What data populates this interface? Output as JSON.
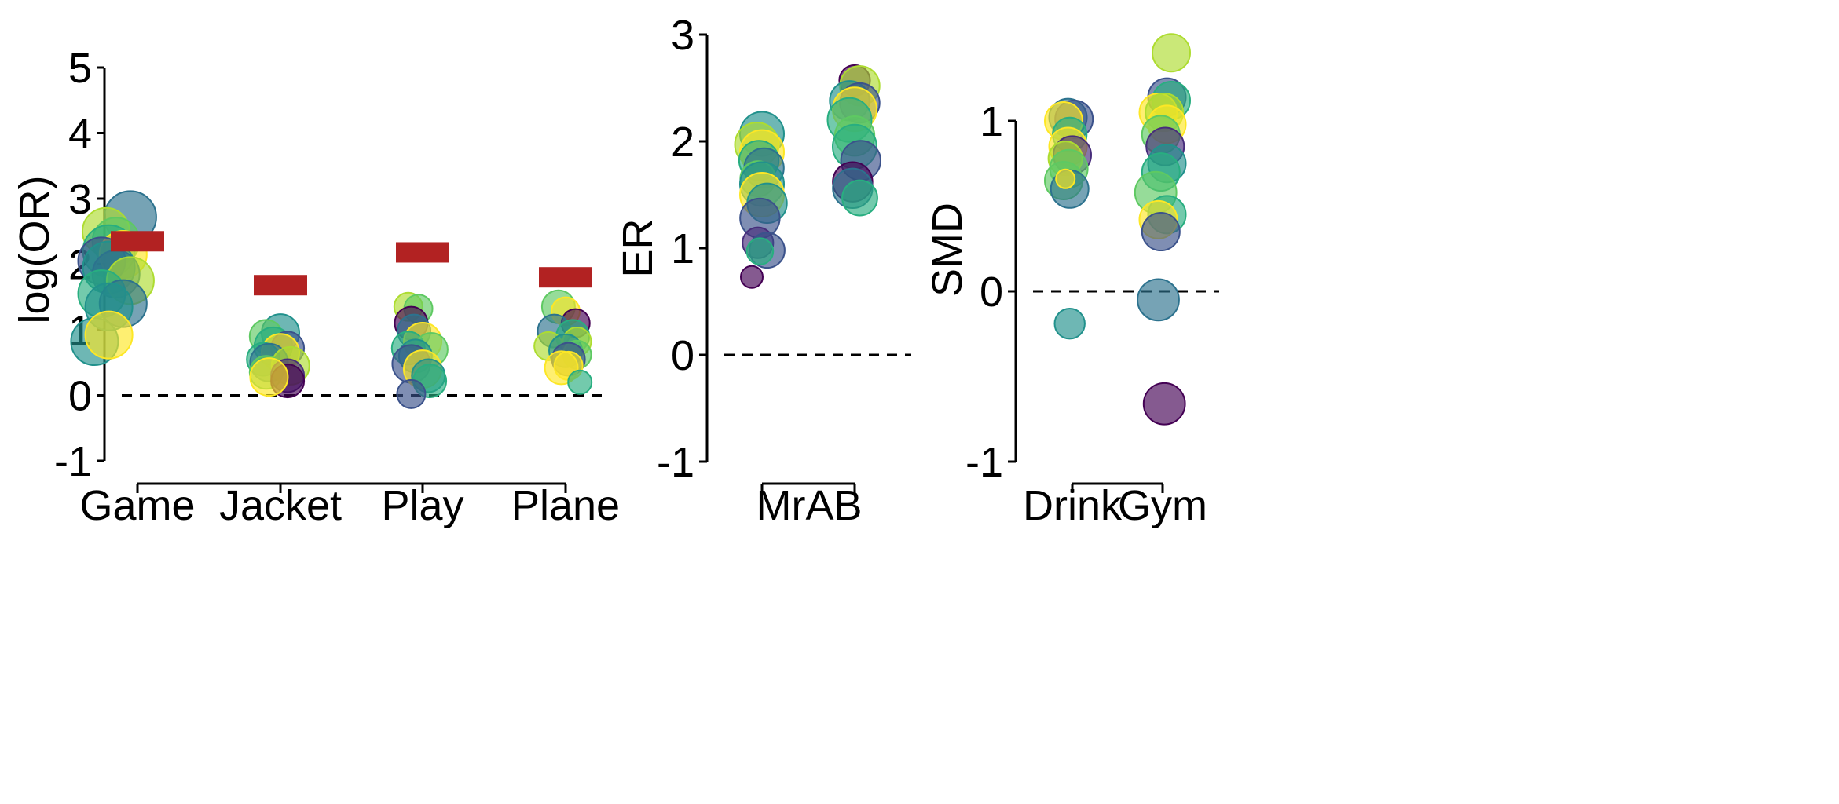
{
  "colors": {
    "reference_bar": "#B22222",
    "zero_line": "#000000",
    "palette": [
      "#440154",
      "#472d7b",
      "#3b528b",
      "#2c728e",
      "#21918c",
      "#28ae80",
      "#5ec962",
      "#addc30",
      "#fde725"
    ]
  },
  "chart_data": [
    {
      "type": "scatter",
      "ylabel": "log(OR)",
      "ylim": [
        -1,
        5
      ],
      "yticks": [
        "5",
        "4",
        "3",
        "2",
        "1",
        "0",
        "-1"
      ],
      "categories": [
        "Game",
        "Jacket",
        "Play",
        "Plane"
      ],
      "zero_line": true,
      "reference_values": [
        2.35,
        1.68,
        2.18,
        1.8
      ],
      "points": [
        {
          "category": "Game",
          "dx": -0.05,
          "y": 2.72,
          "size": 1.1,
          "color": 3
        },
        {
          "category": "Game",
          "dx": -0.22,
          "y": 2.5,
          "size": 1.0,
          "color": 7
        },
        {
          "category": "Game",
          "dx": -0.15,
          "y": 2.35,
          "size": 1.0,
          "color": 6
        },
        {
          "category": "Game",
          "dx": -0.2,
          "y": 2.2,
          "size": 1.1,
          "color": 5
        },
        {
          "category": "Game",
          "dx": -0.1,
          "y": 2.15,
          "size": 1.0,
          "color": 8
        },
        {
          "category": "Game",
          "dx": -0.25,
          "y": 2.05,
          "size": 1.0,
          "color": 2
        },
        {
          "category": "Game",
          "dx": -0.2,
          "y": 1.95,
          "size": 1.1,
          "color": 4
        },
        {
          "category": "Game",
          "dx": -0.15,
          "y": 1.85,
          "size": 1.0,
          "color": 3
        },
        {
          "category": "Game",
          "dx": -0.05,
          "y": 1.75,
          "size": 1.0,
          "color": 7
        },
        {
          "category": "Game",
          "dx": -0.25,
          "y": 1.55,
          "size": 1.0,
          "color": 5
        },
        {
          "category": "Game",
          "dx": -0.1,
          "y": 1.4,
          "size": 1.0,
          "color": 3
        },
        {
          "category": "Game",
          "dx": -0.2,
          "y": 1.35,
          "size": 1.0,
          "color": 4
        },
        {
          "category": "Game",
          "dx": -0.3,
          "y": 0.82,
          "size": 1.0,
          "color": 4
        },
        {
          "category": "Game",
          "dx": -0.2,
          "y": 0.92,
          "size": 1.0,
          "color": 8
        },
        {
          "category": "Jacket",
          "dx": 0.0,
          "y": 0.95,
          "size": 0.8,
          "color": 4
        },
        {
          "category": "Jacket",
          "dx": -0.1,
          "y": 0.9,
          "size": 0.7,
          "color": 6
        },
        {
          "category": "Jacket",
          "dx": -0.05,
          "y": 0.75,
          "size": 0.8,
          "color": 5
        },
        {
          "category": "Jacket",
          "dx": 0.05,
          "y": 0.72,
          "size": 0.7,
          "color": 2
        },
        {
          "category": "Jacket",
          "dx": 0.0,
          "y": 0.65,
          "size": 0.8,
          "color": 8
        },
        {
          "category": "Jacket",
          "dx": -0.12,
          "y": 0.55,
          "size": 0.7,
          "color": 5
        },
        {
          "category": "Jacket",
          "dx": -0.08,
          "y": 0.5,
          "size": 0.8,
          "color": 3
        },
        {
          "category": "Jacket",
          "dx": 0.07,
          "y": 0.45,
          "size": 0.8,
          "color": 7
        },
        {
          "category": "Jacket",
          "dx": -0.1,
          "y": 0.35,
          "size": 0.7,
          "color": 6
        },
        {
          "category": "Jacket",
          "dx": 0.05,
          "y": 0.3,
          "size": 0.7,
          "color": 1
        },
        {
          "category": "Jacket",
          "dx": 0.05,
          "y": 0.22,
          "size": 0.7,
          "color": 0
        },
        {
          "category": "Jacket",
          "dx": -0.08,
          "y": 0.28,
          "size": 0.8,
          "color": 8
        },
        {
          "category": "Play",
          "dx": -0.1,
          "y": 1.35,
          "size": 0.6,
          "color": 7
        },
        {
          "category": "Play",
          "dx": -0.03,
          "y": 1.32,
          "size": 0.6,
          "color": 6
        },
        {
          "category": "Play",
          "dx": -0.08,
          "y": 1.1,
          "size": 0.7,
          "color": 0
        },
        {
          "category": "Play",
          "dx": -0.06,
          "y": 0.98,
          "size": 0.7,
          "color": 3
        },
        {
          "category": "Play",
          "dx": 0.0,
          "y": 0.82,
          "size": 0.8,
          "color": 8
        },
        {
          "category": "Play",
          "dx": -0.1,
          "y": 0.72,
          "size": 0.7,
          "color": 5
        },
        {
          "category": "Play",
          "dx": 0.06,
          "y": 0.7,
          "size": 0.7,
          "color": 6
        },
        {
          "category": "Play",
          "dx": -0.05,
          "y": 0.6,
          "size": 0.7,
          "color": 4
        },
        {
          "category": "Play",
          "dx": -0.08,
          "y": 0.48,
          "size": 0.8,
          "color": 2
        },
        {
          "category": "Play",
          "dx": 0.0,
          "y": 0.4,
          "size": 0.8,
          "color": 8
        },
        {
          "category": "Play",
          "dx": 0.04,
          "y": 0.3,
          "size": 0.7,
          "color": 4
        },
        {
          "category": "Play",
          "dx": 0.05,
          "y": 0.22,
          "size": 0.7,
          "color": 5
        },
        {
          "category": "Play",
          "dx": -0.08,
          "y": 0.02,
          "size": 0.6,
          "color": 2
        },
        {
          "category": "Plane",
          "dx": -0.05,
          "y": 1.35,
          "size": 0.7,
          "color": 6
        },
        {
          "category": "Plane",
          "dx": 0.0,
          "y": 1.28,
          "size": 0.6,
          "color": 8
        },
        {
          "category": "Plane",
          "dx": 0.07,
          "y": 1.1,
          "size": 0.6,
          "color": 0
        },
        {
          "category": "Plane",
          "dx": -0.08,
          "y": 0.98,
          "size": 0.7,
          "color": 3
        },
        {
          "category": "Plane",
          "dx": 0.05,
          "y": 0.9,
          "size": 0.7,
          "color": 5
        },
        {
          "category": "Plane",
          "dx": 0.08,
          "y": 0.82,
          "size": 0.6,
          "color": 7
        },
        {
          "category": "Plane",
          "dx": -0.12,
          "y": 0.75,
          "size": 0.6,
          "color": 7
        },
        {
          "category": "Plane",
          "dx": 0.0,
          "y": 0.68,
          "size": 0.7,
          "color": 4
        },
        {
          "category": "Plane",
          "dx": 0.08,
          "y": 0.62,
          "size": 0.6,
          "color": 6
        },
        {
          "category": "Plane",
          "dx": 0.02,
          "y": 0.55,
          "size": 0.7,
          "color": 2
        },
        {
          "category": "Plane",
          "dx": 0.02,
          "y": 0.45,
          "size": 0.6,
          "color": 8
        },
        {
          "category": "Plane",
          "dx": -0.03,
          "y": 0.42,
          "size": 0.7,
          "color": 8
        },
        {
          "category": "Plane",
          "dx": 0.1,
          "y": 0.2,
          "size": 0.5,
          "color": 5
        }
      ]
    },
    {
      "type": "scatter",
      "ylabel": "ER",
      "ylim": [
        -1,
        3
      ],
      "yticks": [
        "3",
        "2",
        "1",
        "0",
        "-1"
      ],
      "categories": [
        "MrAB"
      ],
      "group_ticks": 2,
      "zero_line": true,
      "points": [
        {
          "group": 0,
          "dx": 0.0,
          "y": 2.07,
          "size": 1.0,
          "color": 4
        },
        {
          "group": 0,
          "dx": -0.05,
          "y": 1.97,
          "size": 1.0,
          "color": 7
        },
        {
          "group": 0,
          "dx": 0.0,
          "y": 1.9,
          "size": 1.0,
          "color": 8
        },
        {
          "group": 0,
          "dx": -0.03,
          "y": 1.82,
          "size": 0.9,
          "color": 5
        },
        {
          "group": 0,
          "dx": 0.02,
          "y": 1.75,
          "size": 0.9,
          "color": 3
        },
        {
          "group": 0,
          "dx": -0.04,
          "y": 1.65,
          "size": 0.8,
          "color": 6
        },
        {
          "group": 0,
          "dx": 0.0,
          "y": 1.6,
          "size": 1.0,
          "color": 4
        },
        {
          "group": 0,
          "dx": 0.0,
          "y": 1.5,
          "size": 1.0,
          "color": 8
        },
        {
          "group": 0,
          "dx": 0.05,
          "y": 1.42,
          "size": 0.9,
          "color": 4
        },
        {
          "group": 0,
          "dx": -0.02,
          "y": 1.28,
          "size": 0.9,
          "color": 2
        },
        {
          "group": 0,
          "dx": -0.04,
          "y": 1.05,
          "size": 0.7,
          "color": 1
        },
        {
          "group": 0,
          "dx": 0.05,
          "y": 0.98,
          "size": 0.8,
          "color": 2
        },
        {
          "group": 0,
          "dx": -0.02,
          "y": 0.97,
          "size": 0.6,
          "color": 5
        },
        {
          "group": 0,
          "dx": -0.1,
          "y": 0.73,
          "size": 0.5,
          "color": 0
        },
        {
          "group": 1,
          "dx": 0.0,
          "y": 2.57,
          "size": 0.7,
          "color": 0
        },
        {
          "group": 1,
          "dx": 0.05,
          "y": 2.52,
          "size": 0.9,
          "color": 7
        },
        {
          "group": 1,
          "dx": -0.05,
          "y": 2.38,
          "size": 0.9,
          "color": 4
        },
        {
          "group": 1,
          "dx": 0.05,
          "y": 2.36,
          "size": 0.9,
          "color": 2
        },
        {
          "group": 1,
          "dx": 0.0,
          "y": 2.3,
          "size": 1.0,
          "color": 8
        },
        {
          "group": 1,
          "dx": -0.05,
          "y": 2.2,
          "size": 1.0,
          "color": 5
        },
        {
          "group": 1,
          "dx": 0.0,
          "y": 2.05,
          "size": 0.9,
          "color": 6
        },
        {
          "group": 1,
          "dx": 0.0,
          "y": 1.95,
          "size": 1.0,
          "color": 5
        },
        {
          "group": 1,
          "dx": 0.06,
          "y": 1.82,
          "size": 0.9,
          "color": 2
        },
        {
          "group": 1,
          "dx": -0.02,
          "y": 1.62,
          "size": 0.9,
          "color": 0
        },
        {
          "group": 1,
          "dx": -0.02,
          "y": 1.56,
          "size": 0.9,
          "color": 3
        },
        {
          "group": 1,
          "dx": 0.05,
          "y": 1.47,
          "size": 0.8,
          "color": 5
        }
      ]
    },
    {
      "type": "scatter",
      "ylabel": "SMD",
      "ylim": [
        -1,
        1
      ],
      "yticks": [
        "1",
        "0",
        "-1"
      ],
      "categories": [
        "Drink",
        "Gym"
      ],
      "zero_line": true,
      "points": [
        {
          "category": "Drink",
          "dx": -0.05,
          "y": 1.02,
          "size": 1.0,
          "color": 3
        },
        {
          "category": "Drink",
          "dx": 0.02,
          "y": 1.01,
          "size": 1.0,
          "color": 2
        },
        {
          "category": "Drink",
          "dx": -0.1,
          "y": 1.0,
          "size": 1.0,
          "color": 8
        },
        {
          "category": "Drink",
          "dx": -0.03,
          "y": 0.92,
          "size": 0.9,
          "color": 5
        },
        {
          "category": "Drink",
          "dx": -0.05,
          "y": 0.85,
          "size": 1.0,
          "color": 8
        },
        {
          "category": "Drink",
          "dx": 0.0,
          "y": 0.8,
          "size": 1.0,
          "color": 1
        },
        {
          "category": "Drink",
          "dx": -0.08,
          "y": 0.78,
          "size": 0.9,
          "color": 7
        },
        {
          "category": "Drink",
          "dx": -0.04,
          "y": 0.72,
          "size": 1.0,
          "color": 6
        },
        {
          "category": "Drink",
          "dx": -0.1,
          "y": 0.65,
          "size": 1.0,
          "color": 6
        },
        {
          "category": "Drink",
          "dx": -0.03,
          "y": 0.6,
          "size": 1.0,
          "color": 3
        },
        {
          "category": "Drink",
          "dx": -0.08,
          "y": 0.66,
          "size": 0.5,
          "color": 8
        },
        {
          "category": "Drink",
          "dx": -0.03,
          "y": -0.19,
          "size": 0.8,
          "color": 4
        },
        {
          "category": "Gym",
          "dx": 0.1,
          "y": 1.4,
          "size": 1.0,
          "color": 7
        },
        {
          "category": "Gym",
          "dx": 0.05,
          "y": 1.14,
          "size": 1.0,
          "color": 2
        },
        {
          "category": "Gym",
          "dx": 0.1,
          "y": 1.12,
          "size": 1.0,
          "color": 5
        },
        {
          "category": "Gym",
          "dx": -0.05,
          "y": 1.05,
          "size": 1.0,
          "color": 8
        },
        {
          "category": "Gym",
          "dx": 0.02,
          "y": 1.05,
          "size": 1.0,
          "color": 7
        },
        {
          "category": "Gym",
          "dx": 0.05,
          "y": 0.98,
          "size": 1.0,
          "color": 8
        },
        {
          "category": "Gym",
          "dx": -0.02,
          "y": 0.92,
          "size": 1.0,
          "color": 6
        },
        {
          "category": "Gym",
          "dx": 0.03,
          "y": 0.85,
          "size": 1.0,
          "color": 1
        },
        {
          "category": "Gym",
          "dx": 0.05,
          "y": 0.75,
          "size": 1.0,
          "color": 4
        },
        {
          "category": "Gym",
          "dx": -0.02,
          "y": 0.7,
          "size": 1.0,
          "color": 5
        },
        {
          "category": "Gym",
          "dx": -0.08,
          "y": 0.58,
          "size": 1.1,
          "color": 6
        },
        {
          "category": "Gym",
          "dx": 0.05,
          "y": 0.45,
          "size": 1.0,
          "color": 5
        },
        {
          "category": "Gym",
          "dx": -0.05,
          "y": 0.42,
          "size": 1.0,
          "color": 8
        },
        {
          "category": "Gym",
          "dx": -0.02,
          "y": 0.35,
          "size": 1.0,
          "color": 2
        },
        {
          "category": "Gym",
          "dx": -0.05,
          "y": -0.05,
          "size": 1.1,
          "color": 3
        },
        {
          "category": "Gym",
          "dx": 0.02,
          "y": -0.66,
          "size": 1.1,
          "color": 0
        }
      ]
    }
  ]
}
